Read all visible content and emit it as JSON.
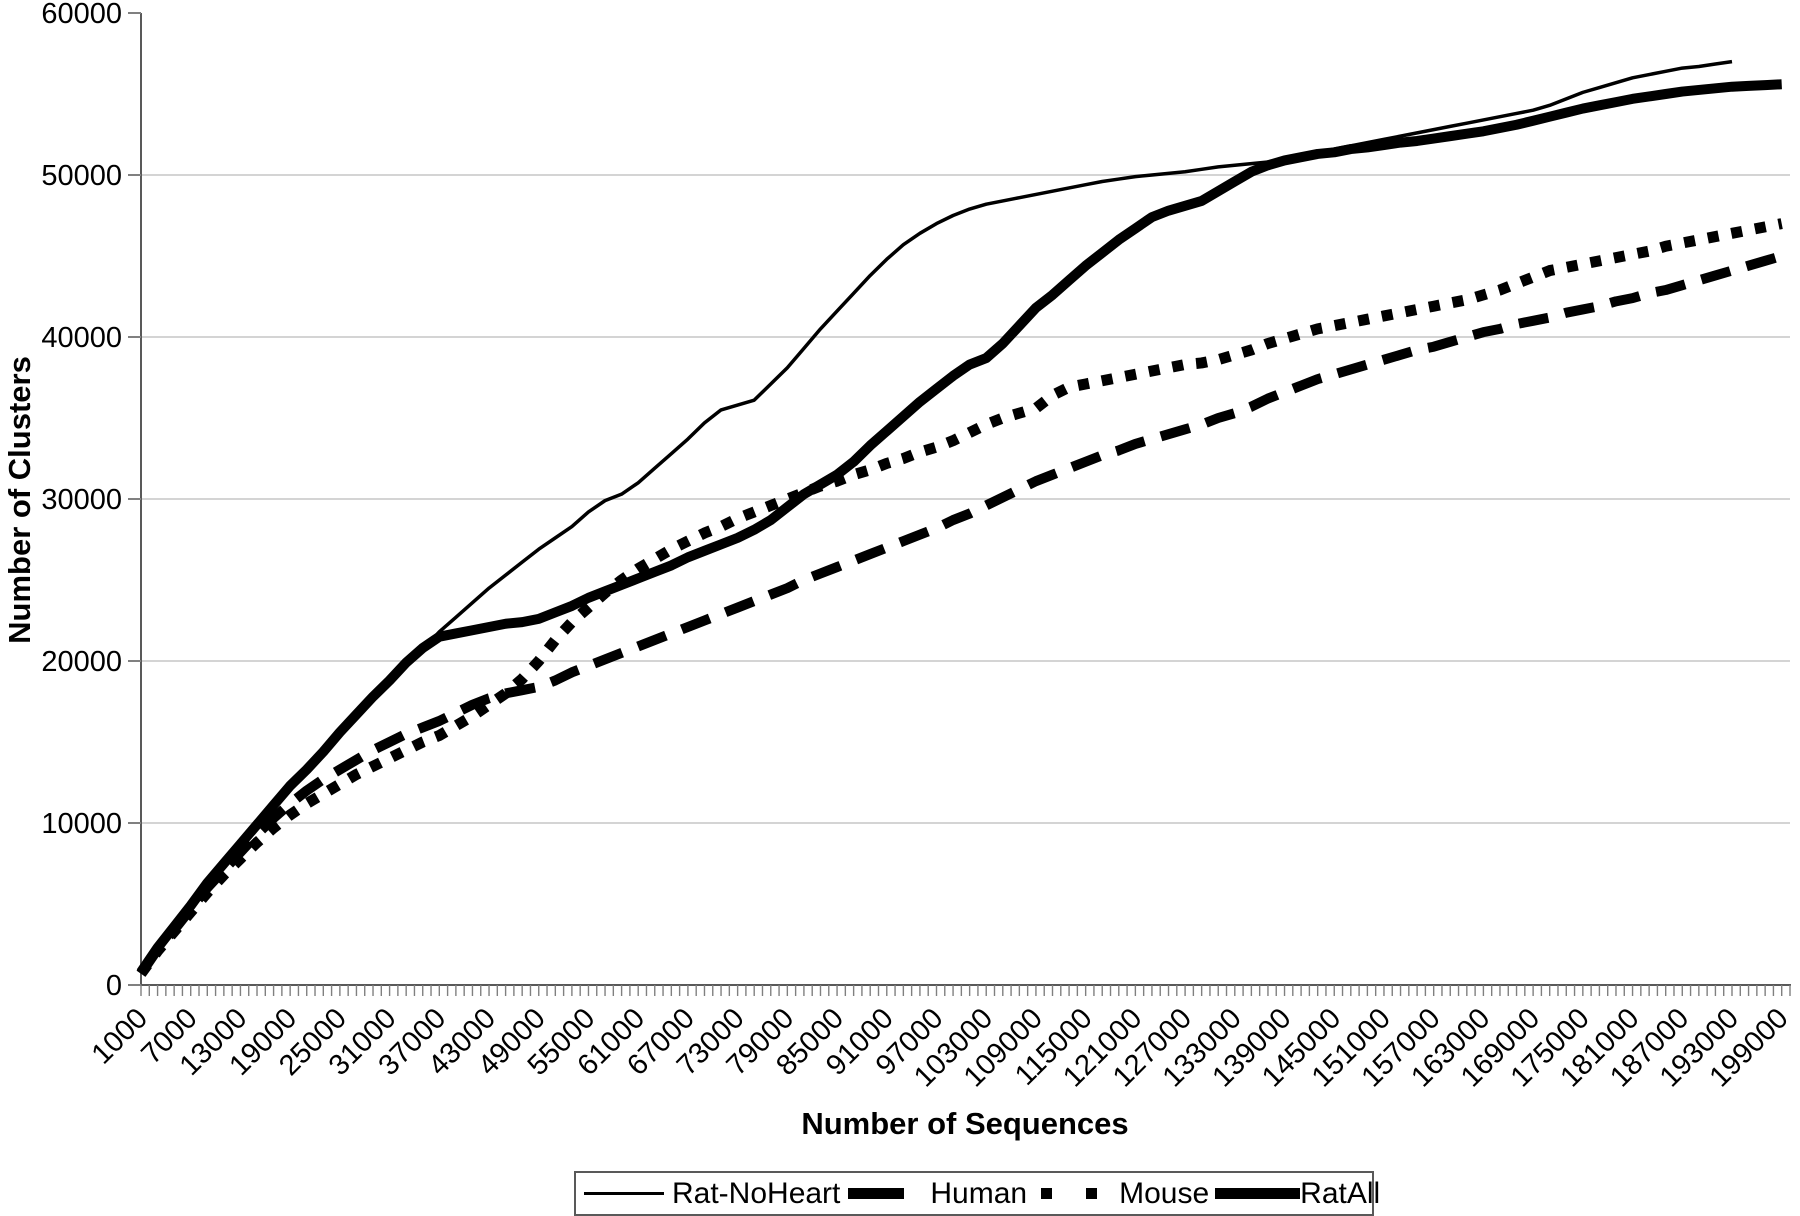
{
  "chart_data": {
    "type": "line",
    "title": "",
    "xlabel": "Number of Sequences",
    "ylabel": "Number of Clusters",
    "x_range": [
      1000,
      200000
    ],
    "y_range": [
      0,
      60000
    ],
    "x_minor_tick_step": 1000,
    "x_ticks": [
      1000,
      7000,
      13000,
      19000,
      25000,
      31000,
      37000,
      43000,
      49000,
      55000,
      61000,
      67000,
      73000,
      79000,
      85000,
      91000,
      97000,
      103000,
      109000,
      115000,
      121000,
      127000,
      133000,
      139000,
      145000,
      151000,
      157000,
      163000,
      169000,
      175000,
      181000,
      187000,
      193000,
      199000
    ],
    "y_ticks": [
      0,
      10000,
      20000,
      30000,
      40000,
      50000,
      60000
    ],
    "grid": "horizontal-only",
    "legend_position": "bottom-center",
    "series": [
      {
        "name": "Rat-NoHeart",
        "line_style": "thin-solid",
        "x_start": 1000,
        "x_step": 2000,
        "values": [
          800,
          2200,
          3500,
          4800,
          6200,
          7400,
          8500,
          9700,
          10900,
          12100,
          13100,
          14200,
          15400,
          16500,
          17600,
          18600,
          19700,
          20700,
          21800,
          22700,
          23600,
          24500,
          25300,
          26100,
          26900,
          27600,
          28300,
          29200,
          29900,
          30300,
          31000,
          31900,
          32800,
          33700,
          34700,
          35500,
          35800,
          36100,
          37100,
          38100,
          39300,
          40500,
          41600,
          42700,
          43800,
          44800,
          45700,
          46400,
          47000,
          47500,
          47900,
          48200,
          48400,
          48600,
          48800,
          49000,
          49200,
          49400,
          49600,
          49750,
          49900,
          50000,
          50100,
          50200,
          50350,
          50500,
          50600,
          50700,
          50800,
          51000,
          51200,
          51400,
          51600,
          51800,
          52000,
          52200,
          52400,
          52600,
          52800,
          53000,
          53200,
          53400,
          53600,
          53800,
          54000,
          54300,
          54700,
          55100,
          55400,
          55700,
          56000,
          56200,
          56400,
          56600,
          56700,
          56850,
          57000
        ]
      },
      {
        "name": "Human",
        "line_style": "thick-dashed",
        "x_start": 1000,
        "x_step": 2000,
        "values": [
          700,
          2200,
          3400,
          4700,
          6000,
          7100,
          8200,
          9300,
          10300,
          11200,
          12000,
          12700,
          13300,
          13900,
          14500,
          15000,
          15500,
          15900,
          16300,
          16800,
          17300,
          17700,
          18000,
          18200,
          18400,
          18800,
          19300,
          19700,
          20100,
          20500,
          20900,
          21300,
          21700,
          22100,
          22500,
          22900,
          23300,
          23700,
          24100,
          24500,
          25000,
          25400,
          25800,
          26200,
          26600,
          27000,
          27400,
          27800,
          28200,
          28700,
          29100,
          29600,
          30100,
          30600,
          31100,
          31500,
          31900,
          32300,
          32700,
          33000,
          33400,
          33700,
          34000,
          34300,
          34600,
          35000,
          35300,
          35700,
          36200,
          36600,
          37000,
          37400,
          37700,
          38000,
          38300,
          38600,
          38900,
          39200,
          39400,
          39700,
          40000,
          40300,
          40500,
          40800,
          41000,
          41200,
          41500,
          41700,
          41900,
          42200,
          42400,
          42700,
          42900,
          43200,
          43500,
          43800,
          44100,
          44400,
          44700,
          45000
        ]
      },
      {
        "name": "Mouse",
        "line_style": "thick-dotted",
        "x_start": 1000,
        "x_step": 2000,
        "values": [
          700,
          2100,
          3300,
          4500,
          5700,
          6800,
          7800,
          8800,
          9700,
          10500,
          11200,
          11800,
          12400,
          13000,
          13500,
          14000,
          14500,
          15000,
          15400,
          16000,
          16600,
          17300,
          18000,
          18900,
          20000,
          21300,
          22400,
          23300,
          24200,
          25000,
          25700,
          26300,
          26900,
          27400,
          27900,
          28300,
          28800,
          29200,
          29600,
          30000,
          30400,
          30800,
          31100,
          31500,
          31800,
          32200,
          32500,
          32900,
          33200,
          33600,
          34100,
          34600,
          35000,
          35300,
          35600,
          36400,
          36900,
          37100,
          37300,
          37500,
          37700,
          37900,
          38100,
          38300,
          38400,
          38600,
          38900,
          39200,
          39600,
          39900,
          40200,
          40500,
          40700,
          40900,
          41100,
          41300,
          41500,
          41700,
          41900,
          42100,
          42300,
          42600,
          42900,
          43300,
          43700,
          44100,
          44300,
          44500,
          44700,
          44900,
          45100,
          45300,
          45600,
          45800,
          46000,
          46200,
          46400,
          46600,
          46800,
          47000
        ]
      },
      {
        "name": "RatAll",
        "line_style": "thick-solid",
        "x_start": 1000,
        "x_step": 2000,
        "values": [
          800,
          2300,
          3600,
          4900,
          6300,
          7500,
          8700,
          9900,
          11100,
          12300,
          13300,
          14400,
          15600,
          16700,
          17800,
          18800,
          19900,
          20800,
          21500,
          21700,
          21900,
          22100,
          22300,
          22400,
          22600,
          23000,
          23400,
          23900,
          24300,
          24700,
          25100,
          25500,
          25900,
          26400,
          26800,
          27200,
          27600,
          28100,
          28700,
          29500,
          30300,
          30900,
          31500,
          32300,
          33300,
          34200,
          35100,
          36000,
          36800,
          37600,
          38300,
          38700,
          39600,
          40700,
          41800,
          42600,
          43500,
          44400,
          45200,
          46000,
          46700,
          47400,
          47800,
          48100,
          48400,
          49000,
          49600,
          50200,
          50600,
          50900,
          51100,
          51300,
          51400,
          51600,
          51700,
          51850,
          52000,
          52100,
          52250,
          52400,
          52550,
          52700,
          52900,
          53100,
          53350,
          53600,
          53850,
          54100,
          54300,
          54500,
          54700,
          54850,
          55000,
          55150,
          55250,
          55350,
          55450,
          55500,
          55550,
          55600
        ]
      }
    ]
  },
  "colors": {
    "line": "#000000",
    "gridline": "#c6c6c6",
    "axis": "#595959",
    "tick": "#808080",
    "text": "#000000",
    "legend_border": "#595959",
    "background": "#ffffff"
  }
}
